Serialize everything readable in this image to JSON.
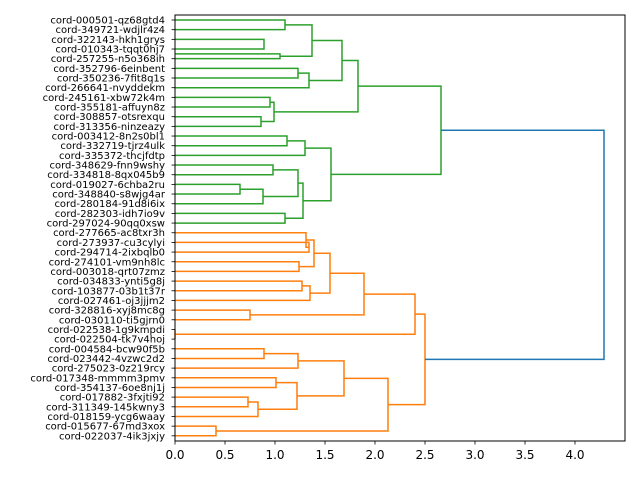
{
  "chart_data": {
    "type": "dendrogram",
    "orientation": "horizontal",
    "title": "",
    "xlabel": "",
    "ylabel": "",
    "xlim": [
      0,
      4.5
    ],
    "xticks": [
      "0.0",
      "0.5",
      "1.0",
      "1.5",
      "2.0",
      "2.5",
      "3.0",
      "3.5",
      "4.0"
    ],
    "colors": {
      "cluster_a": "#2ca02c",
      "cluster_b": "#ff7f0e",
      "root": "#1f77b4"
    },
    "leaves": [
      "cord-000501-qz68gtd4",
      "cord-349721-wdjlr4z4",
      "cord-322143-hkh1grys",
      "cord-010343-tqqt0hj7",
      "cord-257255-n5o368ih",
      "cord-352796-6einbent",
      "cord-350236-7fit8q1s",
      "cord-266641-nvyddekm",
      "cord-245161-xbw72k4m",
      "cord-355181-affuyn8z",
      "cord-308857-otsrexqu",
      "cord-313356-ninzeazy",
      "cord-003412-8n2s0bl1",
      "cord-332719-tjrz4ulk",
      "cord-335372-thcjfdtp",
      "cord-348629-fnn9wshy",
      "cord-334818-8qx045b9",
      "cord-019027-6chba2ru",
      "cord-348840-s8wjg4ar",
      "cord-280184-91d8i6ix",
      "cord-282303-idh7io9v",
      "cord-297024-90qq0xsw",
      "cord-277665-ac8txr3h",
      "cord-273937-cu3cylyi",
      "cord-294714-2ixbqlb0",
      "cord-274101-vm9nh8lc",
      "cord-003018-qrt07zmz",
      "cord-034833-ynti5g8j",
      "cord-103877-03b1t37r",
      "cord-027461-oj3jjjm2",
      "cord-328816-xyj8mc8g",
      "cord-030110-ti5gjrn0",
      "cord-022538-1g9kmpdi",
      "cord-022504-tk7v4hoj",
      "cord-004584-bcw90f5b",
      "cord-023442-4vzwc2d2",
      "cord-275023-0z219rcy",
      "cord-017348-mmmm3pmv",
      "cord-354137-6oe8nj1j",
      "cord-017882-3fxjti92",
      "cord-311349-145kwny3",
      "cord-018159-ycg6waay",
      "cord-015677-67md3xox",
      "cord-022037-4ik3jxjy"
    ],
    "merges": [
      {
        "a": 0,
        "b": 1,
        "h": 1.1,
        "c": "cluster_a"
      },
      {
        "a": 2,
        "b": 3,
        "h": 0.89,
        "c": "cluster_a"
      },
      {
        "a": 3.5,
        "b": 4,
        "h": 1.05,
        "c": "cluster_a"
      },
      {
        "a": 0.5,
        "b": 3.75,
        "h": 1.37,
        "c": "cluster_a"
      },
      {
        "a": 5,
        "b": 6,
        "h": 1.23,
        "c": "cluster_a"
      },
      {
        "a": 5.5,
        "b": 7,
        "h": 1.34,
        "c": "cluster_a"
      },
      {
        "a": 2.125,
        "b": 6.25,
        "h": 1.67,
        "c": "cluster_a"
      },
      {
        "a": 8,
        "b": 9,
        "h": 0.95,
        "c": "cluster_a"
      },
      {
        "a": 10,
        "b": 11,
        "h": 0.86,
        "c": "cluster_a"
      },
      {
        "a": 8.5,
        "b": 10.5,
        "h": 0.99,
        "c": "cluster_a"
      },
      {
        "a": 4.1875,
        "b": 9.5,
        "h": 1.83,
        "c": "cluster_a"
      },
      {
        "a": 12,
        "b": 13,
        "h": 1.12,
        "c": "cluster_a"
      },
      {
        "a": 12.5,
        "b": 14,
        "h": 1.3,
        "c": "cluster_a"
      },
      {
        "a": 15,
        "b": 16,
        "h": 0.98,
        "c": "cluster_a"
      },
      {
        "a": 17,
        "b": 18,
        "h": 0.65,
        "c": "cluster_a"
      },
      {
        "a": 17.5,
        "b": 19,
        "h": 0.88,
        "c": "cluster_a"
      },
      {
        "a": 15.5,
        "b": 18.25,
        "h": 1.23,
        "c": "cluster_a"
      },
      {
        "a": 20,
        "b": 21,
        "h": 1.1,
        "c": "cluster_a"
      },
      {
        "a": 16.875,
        "b": 20.5,
        "h": 1.28,
        "c": "cluster_a"
      },
      {
        "a": 13.25,
        "b": 18.6875,
        "h": 1.56,
        "c": "cluster_a"
      },
      {
        "a": 6.84375,
        "b": 15.96875,
        "h": 2.66,
        "c": "cluster_a"
      },
      {
        "a": 23,
        "b": 24,
        "h": 1.34,
        "c": "cluster_b"
      },
      {
        "a": 22,
        "b": 23.5,
        "h": 1.31,
        "c": "cluster_b"
      },
      {
        "a": 25,
        "b": 26,
        "h": 1.24,
        "c": "cluster_b"
      },
      {
        "a": 22.75,
        "b": 25.5,
        "h": 1.39,
        "c": "cluster_b"
      },
      {
        "a": 27,
        "b": 28,
        "h": 1.27,
        "c": "cluster_b"
      },
      {
        "a": 27.5,
        "b": 29,
        "h": 1.35,
        "c": "cluster_b"
      },
      {
        "a": 24.125,
        "b": 28.25,
        "h": 1.55,
        "c": "cluster_b"
      },
      {
        "a": 30,
        "b": 31,
        "h": 0.75,
        "c": "cluster_b"
      },
      {
        "a": 26.1875,
        "b": 30.5,
        "h": 1.89,
        "c": "cluster_b"
      },
      {
        "a": 32,
        "b": 33,
        "h": 0.0,
        "c": "cluster_b"
      },
      {
        "a": 28.34375,
        "b": 32.5,
        "h": 2.4,
        "c": "cluster_b"
      },
      {
        "a": 34,
        "b": 35,
        "h": 0.89,
        "c": "cluster_b"
      },
      {
        "a": 34.5,
        "b": 36,
        "h": 1.23,
        "c": "cluster_b"
      },
      {
        "a": 37,
        "b": 38,
        "h": 1.01,
        "c": "cluster_b"
      },
      {
        "a": 39,
        "b": 40,
        "h": 0.73,
        "c": "cluster_b"
      },
      {
        "a": 39.5,
        "b": 41,
        "h": 0.83,
        "c": "cluster_b"
      },
      {
        "a": 37.5,
        "b": 40.25,
        "h": 1.22,
        "c": "cluster_b"
      },
      {
        "a": 35.25,
        "b": 38.875,
        "h": 1.69,
        "c": "cluster_b"
      },
      {
        "a": 42,
        "b": 43,
        "h": 0.41,
        "c": "cluster_b"
      },
      {
        "a": 37.0625,
        "b": 42.5,
        "h": 2.13,
        "c": "cluster_b"
      },
      {
        "a": 30.421875,
        "b": 39.78125,
        "h": 2.5,
        "c": "cluster_b"
      },
      {
        "a": 11.40625,
        "b": 35.1015625,
        "h": 4.29,
        "c": "root"
      }
    ]
  }
}
